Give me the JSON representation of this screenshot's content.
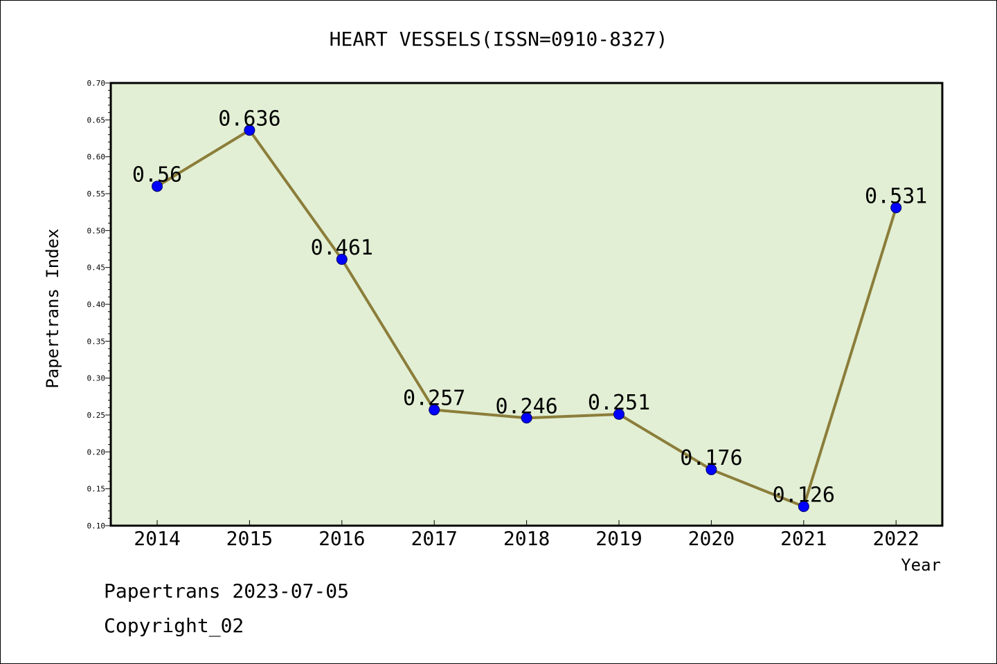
{
  "chart_data": {
    "type": "line",
    "title": "HEART VESSELS(ISSN=0910-8327)",
    "xlabel": "Year",
    "ylabel": "Papertrans Index",
    "categories": [
      "2014",
      "2015",
      "2016",
      "2017",
      "2018",
      "2019",
      "2020",
      "2021",
      "2022"
    ],
    "series": [
      {
        "values": [
          0.56,
          0.636,
          0.461,
          0.257,
          0.246,
          0.251,
          0.176,
          0.126,
          0.531
        ]
      }
    ],
    "data_labels": [
      "0.56",
      "0.636",
      "0.461",
      "0.257",
      "0.246",
      "0.251",
      "0.176",
      "0.126",
      "0.531"
    ],
    "ylim": [
      0.1,
      0.7
    ],
    "yticks": [
      "0.10",
      "0.15",
      "0.20",
      "0.25",
      "0.30",
      "0.35",
      "0.40",
      "0.45",
      "0.50",
      "0.55",
      "0.60",
      "0.65",
      "0.70"
    ],
    "grid": false,
    "colors": {
      "plot_background": "#e2efd4",
      "line": "#8b7d3a",
      "marker": "#0000ff"
    }
  },
  "footer": {
    "line1": "Papertrans 2023-07-05",
    "line2": "Copyright_02"
  }
}
